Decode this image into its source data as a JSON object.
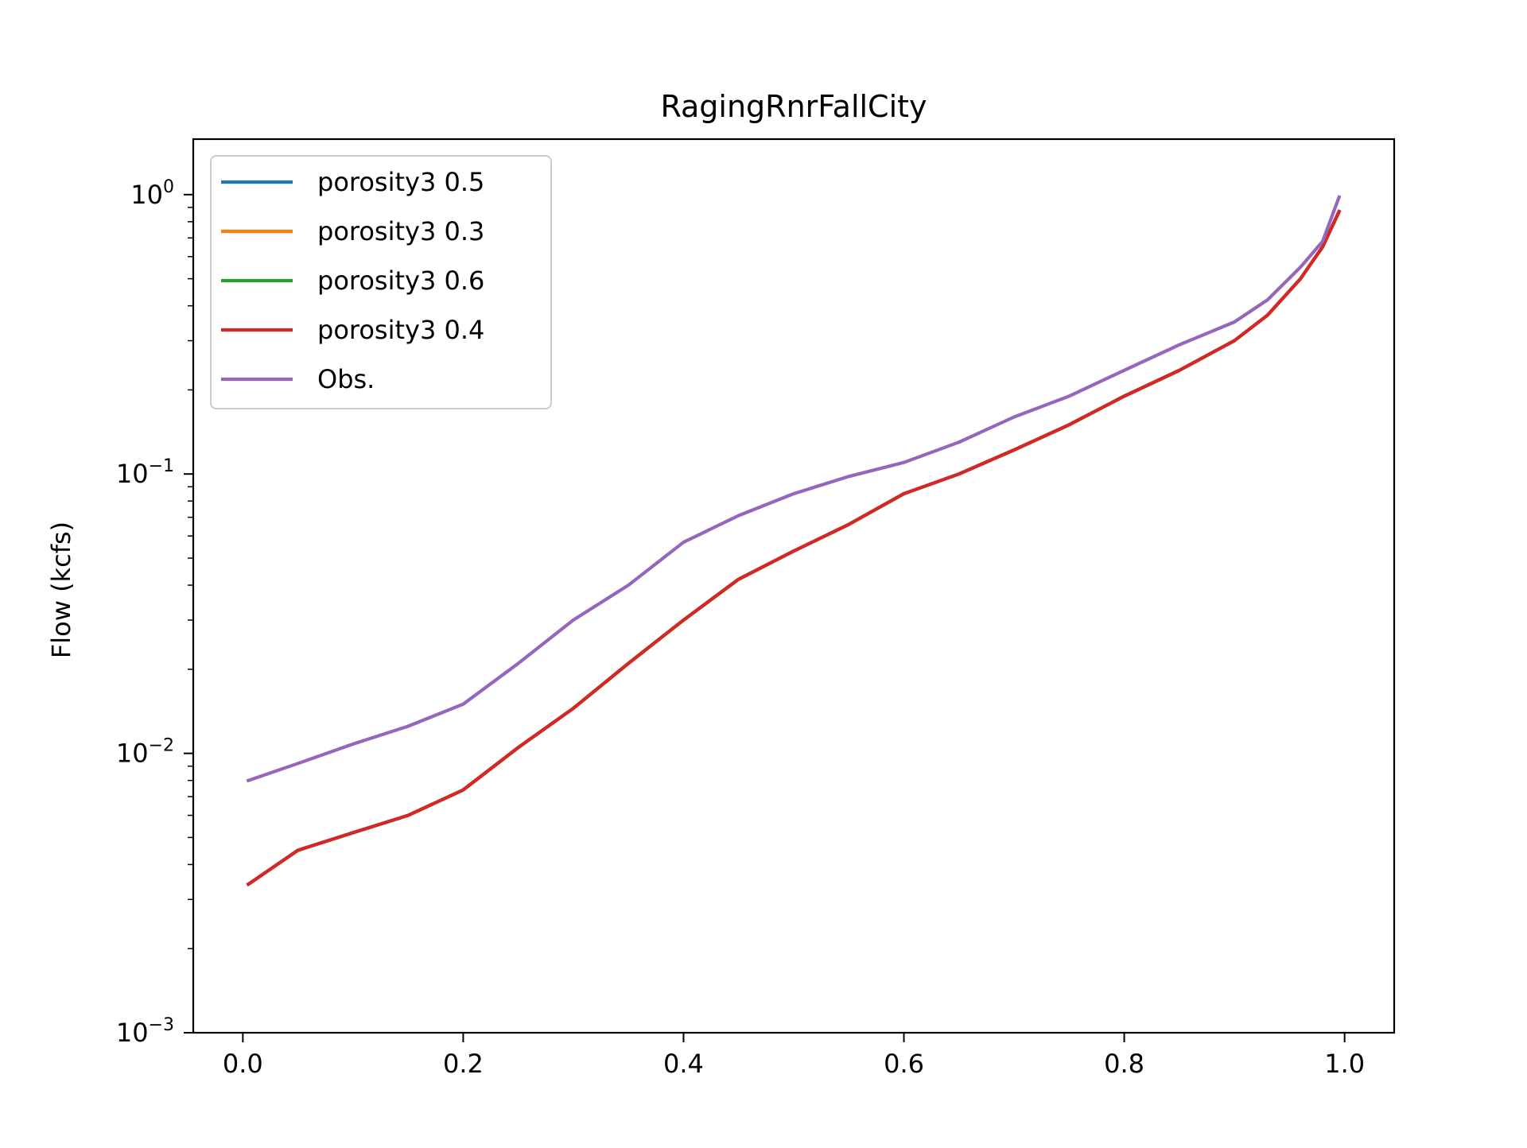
{
  "chart_data": {
    "type": "line",
    "title": "RagingRnrFallCity",
    "xlabel": "",
    "ylabel": "Flow (kcfs)",
    "yscale": "log",
    "xlim": [
      -0.045,
      1.045
    ],
    "ylim": [
      0.001,
      1.58
    ],
    "x_ticks": [
      {
        "value": 0.0,
        "label": "0.0"
      },
      {
        "value": 0.2,
        "label": "0.2"
      },
      {
        "value": 0.4,
        "label": "0.4"
      },
      {
        "value": 0.6,
        "label": "0.6"
      },
      {
        "value": 0.8,
        "label": "0.8"
      },
      {
        "value": 1.0,
        "label": "1.0"
      }
    ],
    "y_ticks": [
      {
        "value": 0.001,
        "base": "10",
        "exp": "−3"
      },
      {
        "value": 0.01,
        "base": "10",
        "exp": "−2"
      },
      {
        "value": 0.1,
        "base": "10",
        "exp": "−1"
      },
      {
        "value": 1,
        "base": "10",
        "exp": "0"
      }
    ],
    "grid": false,
    "legend_position": "top-left",
    "x": [
      0.005,
      0.05,
      0.1,
      0.15,
      0.2,
      0.25,
      0.3,
      0.35,
      0.4,
      0.45,
      0.5,
      0.55,
      0.6,
      0.65,
      0.7,
      0.75,
      0.8,
      0.85,
      0.9,
      0.93,
      0.96,
      0.98,
      0.995
    ],
    "series": [
      {
        "name": "porosity3 0.5",
        "color": "#1f77b4",
        "values": [
          0.0034,
          0.0045,
          0.0052,
          0.006,
          0.0074,
          0.0105,
          0.0145,
          0.021,
          0.03,
          0.042,
          0.053,
          0.066,
          0.085,
          0.1,
          0.122,
          0.15,
          0.19,
          0.235,
          0.3,
          0.37,
          0.5,
          0.65,
          0.87
        ]
      },
      {
        "name": "porosity3 0.3",
        "color": "#ff7f0e",
        "values": [
          0.0034,
          0.0045,
          0.0052,
          0.006,
          0.0074,
          0.0105,
          0.0145,
          0.021,
          0.03,
          0.042,
          0.053,
          0.066,
          0.085,
          0.1,
          0.122,
          0.15,
          0.19,
          0.235,
          0.3,
          0.37,
          0.5,
          0.65,
          0.87
        ]
      },
      {
        "name": "porosity3 0.6",
        "color": "#2ca02c",
        "values": [
          0.0034,
          0.0045,
          0.0052,
          0.006,
          0.0074,
          0.0105,
          0.0145,
          0.021,
          0.03,
          0.042,
          0.053,
          0.066,
          0.085,
          0.1,
          0.122,
          0.15,
          0.19,
          0.235,
          0.3,
          0.37,
          0.5,
          0.65,
          0.87
        ]
      },
      {
        "name": "porosity3 0.4",
        "color": "#d62728",
        "values": [
          0.0034,
          0.0045,
          0.0052,
          0.006,
          0.0074,
          0.0105,
          0.0145,
          0.021,
          0.03,
          0.042,
          0.053,
          0.066,
          0.085,
          0.1,
          0.122,
          0.15,
          0.19,
          0.235,
          0.3,
          0.37,
          0.5,
          0.65,
          0.87
        ]
      },
      {
        "name": "Obs.",
        "color": "#9467bd",
        "values": [
          0.008,
          0.0092,
          0.0108,
          0.0125,
          0.015,
          0.021,
          0.03,
          0.04,
          0.057,
          0.071,
          0.085,
          0.098,
          0.11,
          0.13,
          0.16,
          0.19,
          0.235,
          0.29,
          0.35,
          0.42,
          0.55,
          0.68,
          0.98
        ]
      }
    ]
  }
}
